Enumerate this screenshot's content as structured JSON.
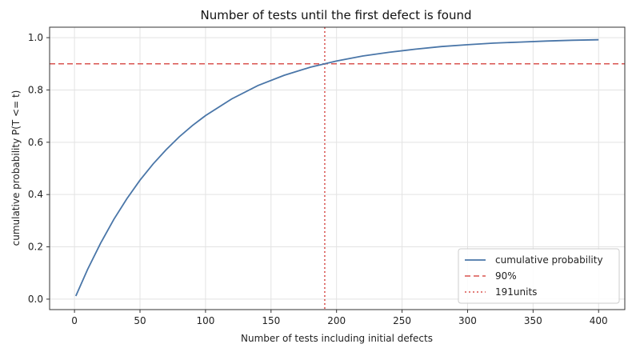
{
  "chart_data": {
    "type": "line",
    "title": "Number of tests until the first defect is found",
    "xlabel": "Number of tests including initial defects",
    "ylabel": "cumulative probability P(T <= t)",
    "xlim": [
      -19,
      420
    ],
    "ylim": [
      -0.04,
      1.04
    ],
    "xticks": [
      0,
      50,
      100,
      150,
      200,
      250,
      300,
      350,
      400
    ],
    "yticks": [
      0.0,
      0.2,
      0.4,
      0.6,
      0.8,
      1.0
    ],
    "xtick_labels": [
      "0",
      "50",
      "100",
      "150",
      "200",
      "250",
      "300",
      "350",
      "400"
    ],
    "ytick_labels": [
      "0.0",
      "0.2",
      "0.4",
      "0.6",
      "0.8",
      "1.0"
    ],
    "grid": true,
    "legend_position": "bottom-right",
    "series": [
      {
        "name": "cumulative probability",
        "color": "#4a76a8",
        "style": "solid",
        "x": [
          1,
          10,
          20,
          30,
          40,
          50,
          60,
          70,
          80,
          90,
          100,
          120,
          140,
          160,
          180,
          191,
          200,
          220,
          240,
          260,
          280,
          300,
          320,
          340,
          360,
          380,
          400
        ],
        "y": [
          0.012,
          0.114,
          0.215,
          0.305,
          0.384,
          0.455,
          0.517,
          0.572,
          0.621,
          0.664,
          0.702,
          0.766,
          0.817,
          0.856,
          0.887,
          0.9,
          0.911,
          0.93,
          0.944,
          0.956,
          0.966,
          0.973,
          0.979,
          0.983,
          0.987,
          0.99,
          0.992
        ]
      }
    ],
    "reference_lines": [
      {
        "name": "90%",
        "orientation": "horizontal",
        "value": 0.9,
        "color": "#d9534f",
        "style": "dashed"
      },
      {
        "name": "191units",
        "orientation": "vertical",
        "value": 191,
        "color": "#d9534f",
        "style": "dotted"
      }
    ]
  }
}
